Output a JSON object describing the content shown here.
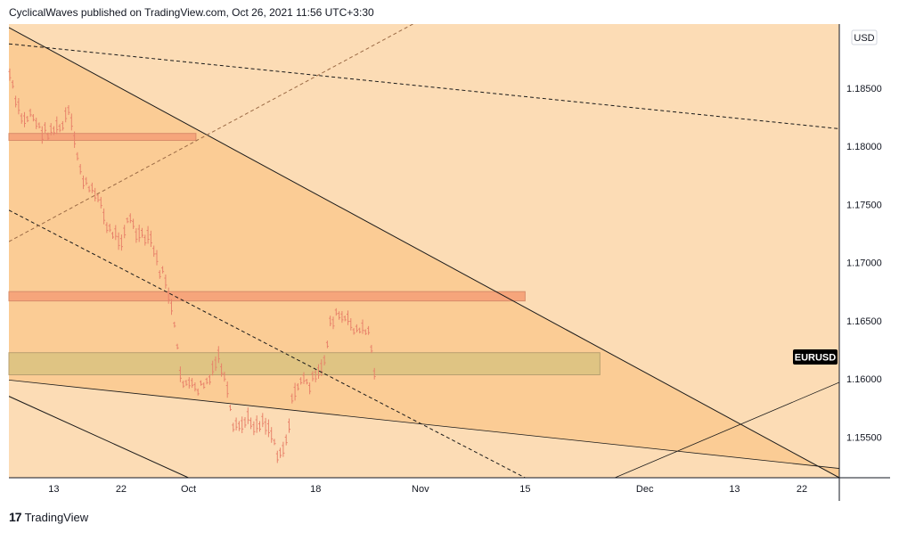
{
  "header": {
    "text": "CyclicalWaves published on TradingView.com, Oct 26, 2021 11:56 UTC+3:30"
  },
  "footer": {
    "logo": "17",
    "text": "TradingView"
  },
  "colors": {
    "background": "#fcdcb5",
    "wedge": "#fbcc95",
    "bar": "#e8826a",
    "resistance_zone": "#f6a57b",
    "support_zone": "#dfc483",
    "line": "#1a1a1a"
  },
  "chart_data": {
    "type": "line",
    "symbol_label": "EURUSD",
    "currency": "USD",
    "ylim": [
      1.1515,
      1.1905
    ],
    "y_ticks": [
      {
        "label": "1.18500",
        "value": 1.185
      },
      {
        "label": "1.18000",
        "value": 1.18
      },
      {
        "label": "1.17500",
        "value": 1.175
      },
      {
        "label": "1.17000",
        "value": 1.17
      },
      {
        "label": "1.16500",
        "value": 1.165
      },
      {
        "label": "1.16000",
        "value": 1.16
      },
      {
        "label": "1.15500",
        "value": 1.155
      }
    ],
    "x_ticks": [
      {
        "label": "13",
        "date": "2021-09-13"
      },
      {
        "label": "22",
        "date": "2021-09-22"
      },
      {
        "label": "Oct",
        "date": "2021-10-01"
      },
      {
        "label": "18",
        "date": "2021-10-18"
      },
      {
        "label": "Nov",
        "date": "2021-11-01"
      },
      {
        "label": "15",
        "date": "2021-11-15"
      },
      {
        "label": "Dec",
        "date": "2021-12-01"
      },
      {
        "label": "13",
        "date": "2021-12-13"
      },
      {
        "label": "22",
        "date": "2021-12-22"
      }
    ],
    "xlim": [
      "2021-09-07",
      "2021-12-27"
    ],
    "price_points": [
      [
        "2021-09-07",
        1.1865
      ],
      [
        "2021-09-08",
        1.1835
      ],
      [
        "2021-09-09",
        1.182
      ],
      [
        "2021-09-10",
        1.183
      ],
      [
        "2021-09-11",
        1.1815
      ],
      [
        "2021-09-12",
        1.1812
      ],
      [
        "2021-09-13",
        1.1815
      ],
      [
        "2021-09-14",
        1.1815
      ],
      [
        "2021-09-15",
        1.183
      ],
      [
        "2021-09-16",
        1.1795
      ],
      [
        "2021-09-17",
        1.177
      ],
      [
        "2021-09-18",
        1.176
      ],
      [
        "2021-09-19",
        1.176
      ],
      [
        "2021-09-20",
        1.173
      ],
      [
        "2021-09-21",
        1.1725
      ],
      [
        "2021-09-22",
        1.172
      ],
      [
        "2021-09-23",
        1.174
      ],
      [
        "2021-09-24",
        1.1725
      ],
      [
        "2021-09-25",
        1.172
      ],
      [
        "2021-09-26",
        1.172
      ],
      [
        "2021-09-27",
        1.1695
      ],
      [
        "2021-09-28",
        1.1685
      ],
      [
        "2021-09-29",
        1.165
      ],
      [
        "2021-09-30",
        1.16
      ],
      [
        "2021-10-01",
        1.1595
      ],
      [
        "2021-10-02",
        1.159
      ],
      [
        "2021-10-03",
        1.1595
      ],
      [
        "2021-10-04",
        1.16
      ],
      [
        "2021-10-05",
        1.162
      ],
      [
        "2021-10-06",
        1.1595
      ],
      [
        "2021-10-07",
        1.1555
      ],
      [
        "2021-10-08",
        1.156
      ],
      [
        "2021-10-09",
        1.1565
      ],
      [
        "2021-10-10",
        1.156
      ],
      [
        "2021-10-11",
        1.1565
      ],
      [
        "2021-10-12",
        1.1555
      ],
      [
        "2021-10-13",
        1.1535
      ],
      [
        "2021-10-14",
        1.1545
      ],
      [
        "2021-10-15",
        1.1585
      ],
      [
        "2021-10-16",
        1.16
      ],
      [
        "2021-10-17",
        1.1595
      ],
      [
        "2021-10-18",
        1.16
      ],
      [
        "2021-10-19",
        1.161
      ],
      [
        "2021-10-20",
        1.165
      ],
      [
        "2021-10-21",
        1.1655
      ],
      [
        "2021-10-22",
        1.165
      ],
      [
        "2021-10-23",
        1.1645
      ],
      [
        "2021-10-24",
        1.164
      ],
      [
        "2021-10-25",
        1.1645
      ],
      [
        "2021-10-26",
        1.16
      ]
    ],
    "zones": [
      {
        "name": "resistance-zone-upper",
        "start": "2021-09-07",
        "end": "2021-10-02",
        "low": 1.1805,
        "high": 1.1811
      },
      {
        "name": "resistance-zone-middle",
        "start": "2021-09-07",
        "end": "2021-11-15",
        "low": 1.1667,
        "high": 1.1675
      },
      {
        "name": "support-zone",
        "start": "2021-09-07",
        "end": "2021-11-25",
        "low": 1.16035,
        "high": 1.16225
      }
    ],
    "trendlines": [
      {
        "name": "wedge-upper-line",
        "style": "solid",
        "p1": [
          "2021-09-07",
          1.1902
        ],
        "p2": [
          "2021-12-27",
          1.1515
        ]
      },
      {
        "name": "wedge-lower-line",
        "style": "solid",
        "p1": [
          "2021-09-07",
          1.1599
        ],
        "p2": [
          "2021-12-27",
          1.1523
        ]
      },
      {
        "name": "channel-lower-line",
        "style": "solid",
        "p1": [
          "2021-09-07",
          1.1585
        ],
        "p2": [
          "2021-10-01",
          1.1515
        ]
      },
      {
        "name": "rising-line",
        "style": "solid",
        "p1": [
          "2021-11-27",
          1.1515
        ],
        "p2": [
          "2021-12-27",
          1.1597
        ]
      },
      {
        "name": "dashed-descending-upper",
        "style": "dashed",
        "p1": [
          "2021-09-07",
          1.1888
        ],
        "p2": [
          "2021-12-27",
          1.1815
        ]
      },
      {
        "name": "dashed-descending-lower",
        "style": "dashed",
        "p1": [
          "2021-09-07",
          1.1745
        ],
        "p2": [
          "2021-11-15",
          1.1515
        ]
      },
      {
        "name": "dashed-rising",
        "style": "dashed",
        "p1": [
          "2021-09-07",
          1.1718
        ],
        "p2": [
          "2021-10-31",
          1.1905
        ]
      }
    ]
  }
}
